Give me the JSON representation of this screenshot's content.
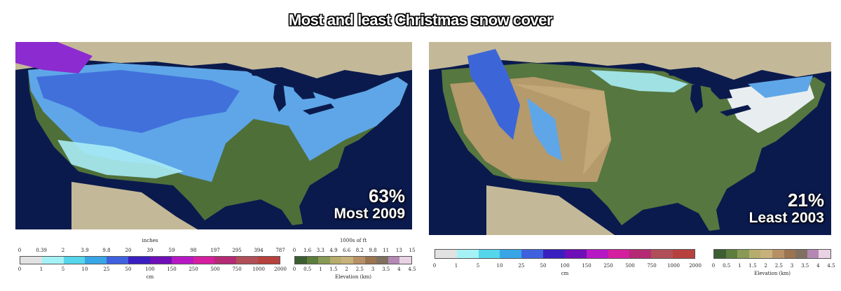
{
  "title": "Most and least Christmas snow cover",
  "maps": [
    {
      "percent": "63%",
      "label": "Most 2009"
    },
    {
      "percent": "21%",
      "label": "Least 2003"
    }
  ],
  "legend_snow": {
    "inches_label": "inches",
    "cm_label": "cm",
    "inches_ticks": [
      "0",
      "0.39",
      "2",
      "3.9",
      "9.8",
      "20",
      "39",
      "59",
      "98",
      "197",
      "295",
      "394",
      "787"
    ],
    "cm_ticks": [
      "0",
      "1",
      "5",
      "10",
      "25",
      "50",
      "100",
      "150",
      "250",
      "500",
      "750",
      "1000",
      "2000"
    ],
    "colors": [
      "#e2e2e2",
      "#a5f2f6",
      "#55d6ea",
      "#38a6e6",
      "#4061de",
      "#3a1fc0",
      "#6f0fb8",
      "#b618c4",
      "#d51f9f",
      "#b42a74",
      "#b14f59",
      "#b7413d"
    ]
  },
  "legend_snow_right": {
    "cm_label": "cm",
    "cm_ticks": [
      "0",
      "1",
      "5",
      "10",
      "25",
      "50",
      "100",
      "150",
      "250",
      "500",
      "750",
      "1000",
      "2000"
    ]
  },
  "legend_elev": {
    "ft_label": "1000s of ft",
    "km_label": "Elevation (km)",
    "ft_ticks": [
      "0",
      "1.6",
      "3.3",
      "4.9",
      "6.6",
      "8.2",
      "9.8",
      "11",
      "13",
      "15"
    ],
    "km_ticks": [
      "0",
      "0.5",
      "1",
      "1.5",
      "2",
      "2.5",
      "3",
      "3.5",
      "4",
      "4.5"
    ],
    "colors": [
      "#3d5e32",
      "#5d7d3c",
      "#889a55",
      "#b6ad6c",
      "#c8b27c",
      "#b89066",
      "#9b7452",
      "#80705f",
      "#b488b4",
      "#e8d2e4"
    ]
  },
  "legend_elev_right": {
    "km_label": "Elevation (km)",
    "km_ticks": [
      "0",
      "0.5",
      "1",
      "1.5",
      "2",
      "2.5",
      "3",
      "3.5",
      "4",
      "4.5"
    ]
  }
}
